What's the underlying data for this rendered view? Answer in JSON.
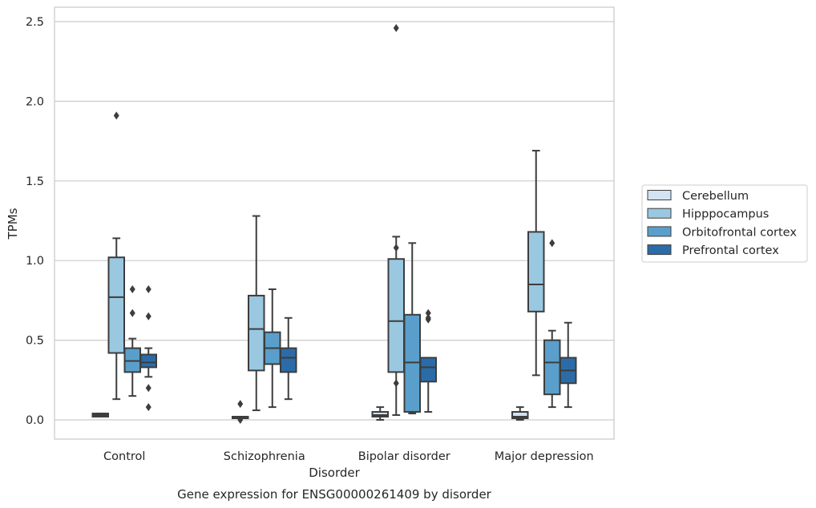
{
  "chart_data": {
    "type": "box",
    "xlabel": "Disorder",
    "ylabel": "TPMs",
    "caption": "Gene expression for ENSG00000261409 by disorder",
    "ylim": [
      -0.12,
      2.6
    ],
    "yticks": [
      0.0,
      0.5,
      1.0,
      1.5,
      2.0,
      2.5
    ],
    "ytick_labels": [
      "0.0",
      "0.5",
      "1.0",
      "1.5",
      "2.0",
      "2.5"
    ],
    "grid": "horizontal",
    "legend_position": "right",
    "categories": [
      "Control",
      "Schizophrenia",
      "Bipolar disorder",
      "Major depression"
    ],
    "series": [
      {
        "name": "Cerebellum",
        "color": "#d2e3f3",
        "boxes": [
          {
            "whislo": 0.02,
            "q1": 0.02,
            "med": 0.03,
            "q3": 0.04,
            "whishi": 0.04,
            "fliers": []
          },
          {
            "whislo": 0.01,
            "q1": 0.01,
            "med": 0.01,
            "q3": 0.02,
            "whishi": 0.02,
            "fliers": [
              0.1,
              0.0
            ]
          },
          {
            "whislo": 0.0,
            "q1": 0.02,
            "med": 0.03,
            "q3": 0.05,
            "whishi": 0.08,
            "fliers": []
          },
          {
            "whislo": 0.0,
            "q1": 0.01,
            "med": 0.02,
            "q3": 0.05,
            "whishi": 0.08,
            "fliers": []
          }
        ]
      },
      {
        "name": "Hipppocampus",
        "color": "#9ac8e0",
        "boxes": [
          {
            "whislo": 0.13,
            "q1": 0.42,
            "med": 0.77,
            "q3": 1.02,
            "whishi": 1.14,
            "fliers": [
              1.91
            ]
          },
          {
            "whislo": 0.06,
            "q1": 0.31,
            "med": 0.57,
            "q3": 0.78,
            "whishi": 1.28,
            "fliers": []
          },
          {
            "whislo": 0.03,
            "q1": 0.3,
            "med": 0.62,
            "q3": 1.01,
            "whishi": 1.15,
            "fliers": [
              1.08,
              0.23,
              2.46
            ]
          },
          {
            "whislo": 0.28,
            "q1": 0.68,
            "med": 0.85,
            "q3": 1.18,
            "whishi": 1.69,
            "fliers": []
          }
        ]
      },
      {
        "name": "Orbitofrontal cortex",
        "color": "#5a9fcb",
        "boxes": [
          {
            "whislo": 0.15,
            "q1": 0.3,
            "med": 0.37,
            "q3": 0.45,
            "whishi": 0.51,
            "fliers": [
              0.82,
              0.67
            ]
          },
          {
            "whislo": 0.08,
            "q1": 0.35,
            "med": 0.45,
            "q3": 0.55,
            "whishi": 0.82,
            "fliers": []
          },
          {
            "whislo": 0.04,
            "q1": 0.05,
            "med": 0.36,
            "q3": 0.66,
            "whishi": 1.11,
            "fliers": []
          },
          {
            "whislo": 0.08,
            "q1": 0.16,
            "med": 0.36,
            "q3": 0.5,
            "whishi": 0.56,
            "fliers": [
              1.11
            ]
          }
        ]
      },
      {
        "name": "Prefrontal cortex",
        "color": "#2b6ca8",
        "boxes": [
          {
            "whislo": 0.27,
            "q1": 0.33,
            "med": 0.36,
            "q3": 0.41,
            "whishi": 0.45,
            "fliers": [
              0.82,
              0.65,
              0.2,
              0.08
            ]
          },
          {
            "whislo": 0.13,
            "q1": 0.3,
            "med": 0.39,
            "q3": 0.45,
            "whishi": 0.64,
            "fliers": []
          },
          {
            "whislo": 0.05,
            "q1": 0.24,
            "med": 0.33,
            "q3": 0.39,
            "whishi": 0.39,
            "fliers": [
              0.67,
              0.64,
              0.63
            ]
          },
          {
            "whislo": 0.08,
            "q1": 0.23,
            "med": 0.31,
            "q3": 0.39,
            "whishi": 0.61,
            "fliers": []
          }
        ]
      }
    ]
  }
}
